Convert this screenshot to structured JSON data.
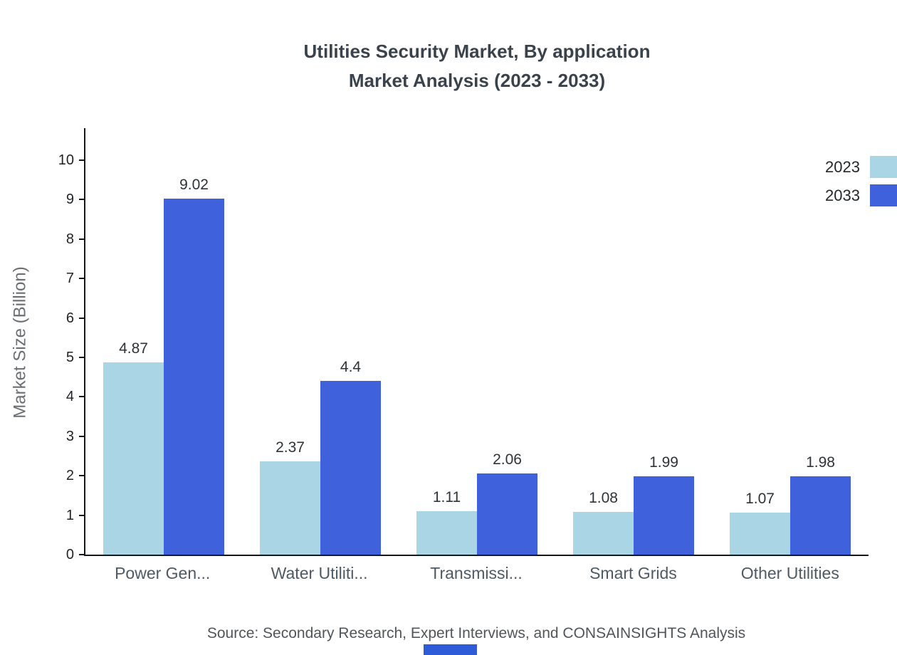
{
  "title": {
    "line1": "Utilities Security Market, By application",
    "line2": "Market Analysis (2023 - 2033)"
  },
  "chart_data": {
    "type": "bar",
    "title": "Utilities Security Market, By application Market Analysis (2023 - 2033)",
    "categories": [
      "Power Gen...",
      "Water Utiliti...",
      "Transmissi...",
      "Smart Grids",
      "Other Utilities"
    ],
    "series": [
      {
        "name": "2023",
        "color": "#a9d5e5",
        "values": [
          4.87,
          2.37,
          1.11,
          1.08,
          1.07
        ]
      },
      {
        "name": "2033",
        "color": "#3f62dc",
        "values": [
          9.02,
          4.4,
          2.06,
          1.99,
          1.98
        ]
      }
    ],
    "xlabel": "",
    "ylabel": "Market Size (Billion)",
    "ylim": [
      0,
      10
    ],
    "yticks": [
      0,
      1,
      2,
      3,
      4,
      5,
      6,
      7,
      8,
      9,
      10
    ],
    "grid": false,
    "legend_position": "top-right"
  },
  "source": "Source: Secondary Research, Expert Interviews, and CONSAINSIGHTS Analysis"
}
